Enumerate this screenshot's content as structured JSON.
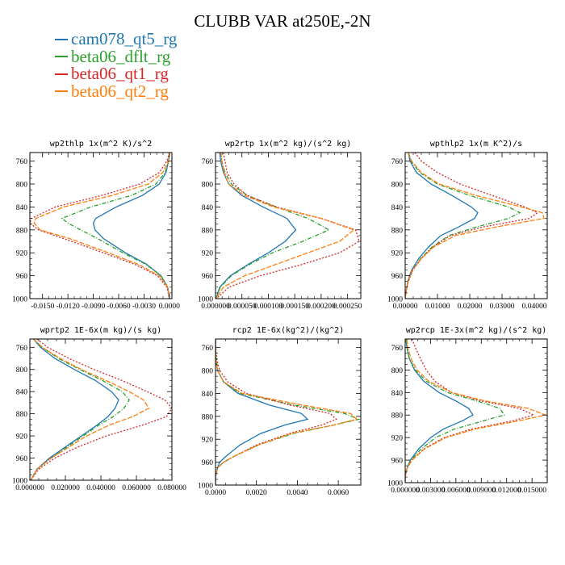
{
  "title": "CLUBB VAR at250E,-2N",
  "legend": [
    {
      "name": "cam078_qt5_rg",
      "color": "#1f77b4"
    },
    {
      "name": "beta06_dflt_rg",
      "color": "#2ca02c"
    },
    {
      "name": "beta06_qt1_rg",
      "color": "#d62728"
    },
    {
      "name": "beta06_qt2_rg",
      "color": "#ff7f0e"
    }
  ],
  "chart_data": [
    {
      "type": "line",
      "title": "wp2thlp   1x(m^2 K)/s^2",
      "xlim": [
        -0.0165,
        0.0003
      ],
      "xticks": [
        -0.015,
        -0.012,
        -0.009,
        -0.006,
        -0.003,
        0.0
      ],
      "xticklabels": [
        "-0.0150",
        "-0.0120",
        "-0.0090",
        "-0.0060",
        "-0.0030",
        "0.0000"
      ],
      "ylim": [
        1000,
        745
      ],
      "yticks": [
        760,
        800,
        840,
        880,
        920,
        960,
        1000
      ],
      "yticklabels": [
        "760",
        "800",
        "840",
        "880",
        "920",
        "960",
        "1000"
      ],
      "y": [
        745,
        760,
        780,
        800,
        820,
        840,
        860,
        868,
        880,
        895,
        920,
        940,
        960,
        980,
        1000
      ],
      "series": [
        {
          "name": "cam078_qt5_rg",
          "values": [
            0,
            -0.0001,
            -0.0004,
            -0.0012,
            -0.0032,
            -0.0063,
            -0.0087,
            -0.009,
            -0.0088,
            -0.0078,
            -0.0052,
            -0.0027,
            -0.001,
            -0.0002,
            0
          ]
        },
        {
          "name": "beta06_dflt_rg",
          "values": [
            0,
            -0.0001,
            -0.0005,
            -0.0016,
            -0.0045,
            -0.0093,
            -0.0127,
            -0.012,
            -0.0105,
            -0.0085,
            -0.0055,
            -0.0028,
            -0.001,
            -0.0002,
            0
          ]
        },
        {
          "name": "beta06_qt1_rg",
          "values": [
            0,
            -0.0003,
            -0.0012,
            -0.0035,
            -0.008,
            -0.0135,
            -0.0163,
            -0.0165,
            -0.0155,
            -0.0125,
            -0.0078,
            -0.0041,
            -0.0014,
            -0.0003,
            0
          ]
        },
        {
          "name": "beta06_qt2_rg",
          "values": [
            0,
            -0.0001,
            -0.0008,
            -0.0025,
            -0.0068,
            -0.0125,
            -0.0158,
            -0.016,
            -0.0153,
            -0.0118,
            -0.0072,
            -0.0037,
            -0.0012,
            -0.0002,
            0
          ]
        }
      ]
    },
    {
      "type": "line",
      "title": "wp2rtp   1x(m^2 kg)/(s^2 kg)",
      "xlim": [
        0.0,
        0.000275
      ],
      "xticks": [
        0.0,
        5e-05,
        0.0001,
        0.00015,
        0.0002,
        0.00025
      ],
      "xticklabels": [
        "0.000000",
        "0.000050",
        "0.000100",
        "0.000150",
        "0.000200",
        "0.000250"
      ],
      "ylim": [
        1000,
        745
      ],
      "yticks": [
        760,
        800,
        840,
        880,
        920,
        960,
        1000
      ],
      "yticklabels": [
        "760",
        "800",
        "840",
        "880",
        "920",
        "960",
        "1000"
      ],
      "y": [
        745,
        760,
        780,
        800,
        820,
        840,
        860,
        880,
        900,
        920,
        940,
        960,
        980,
        1000
      ],
      "series": [
        {
          "name": "cam078_qt5_rg",
          "values": [
            8e-06,
            1e-05,
            1.5e-05,
            2.5e-05,
            5e-05,
            9e-05,
            0.000135,
            0.000152,
            0.000132,
            0.0001,
            6.2e-05,
            2.8e-05,
            8e-06,
            1e-06
          ]
        },
        {
          "name": "beta06_dflt_rg",
          "values": [
            1e-05,
            1.2e-05,
            1.8e-05,
            3e-05,
            6e-05,
            0.000115,
            0.000175,
            0.000215,
            0.000165,
            0.000108,
            6.5e-05,
            3e-05,
            9e-06,
            1e-06
          ]
        },
        {
          "name": "beta06_qt1_rg",
          "values": [
            1.5e-05,
            1.8e-05,
            2.2e-05,
            3.5e-05,
            6e-05,
            0.000115,
            0.0002,
            0.000265,
            0.000272,
            0.000235,
            0.000165,
            8.5e-05,
            2.5e-05,
            2e-06
          ]
        },
        {
          "name": "beta06_qt2_rg",
          "values": [
            1e-05,
            1.2e-05,
            1.6e-05,
            2.5e-05,
            5.5e-05,
            0.00011,
            0.0002,
            0.000262,
            0.000235,
            0.000175,
            0.000115,
            5.5e-05,
            1.5e-05,
            1e-06
          ]
        }
      ]
    },
    {
      "type": "line",
      "title": "wpthlp2   1x(m K^2)/s",
      "xlim": [
        0.0,
        0.044
      ],
      "xticks": [
        0.0,
        0.01,
        0.02,
        0.03,
        0.04
      ],
      "xticklabels": [
        "0.00000",
        "0.01000",
        "0.02000",
        "0.03000",
        "0.04000"
      ],
      "ylim": [
        1000,
        745
      ],
      "yticks": [
        760,
        800,
        840,
        880,
        920,
        960,
        1000
      ],
      "yticklabels": [
        "760",
        "800",
        "840",
        "880",
        "920",
        "960",
        "1000"
      ],
      "y": [
        745,
        760,
        780,
        800,
        820,
        840,
        850,
        860,
        875,
        890,
        910,
        930,
        950,
        970,
        990,
        1000
      ],
      "series": [
        {
          "name": "cam078_qt5_rg",
          "values": [
            0.001,
            0.0015,
            0.0035,
            0.008,
            0.0145,
            0.0205,
            0.0225,
            0.0215,
            0.0165,
            0.011,
            0.0072,
            0.0042,
            0.002,
            0.0008,
            0.0002,
            0
          ]
        },
        {
          "name": "beta06_dflt_rg",
          "values": [
            0.001,
            0.0018,
            0.0045,
            0.01,
            0.02,
            0.032,
            0.0355,
            0.032,
            0.022,
            0.0135,
            0.0083,
            0.0048,
            0.0022,
            0.0009,
            0.0002,
            0
          ]
        },
        {
          "name": "beta06_qt1_rg",
          "values": [
            0.003,
            0.005,
            0.01,
            0.017,
            0.027,
            0.037,
            0.041,
            0.0385,
            0.024,
            0.014,
            0.0085,
            0.005,
            0.0024,
            0.001,
            0.0002,
            0
          ]
        },
        {
          "name": "beta06_qt2_rg",
          "values": [
            0.001,
            0.002,
            0.005,
            0.0105,
            0.022,
            0.036,
            0.0425,
            0.043,
            0.028,
            0.0155,
            0.0088,
            0.005,
            0.0023,
            0.0009,
            0.0002,
            0
          ]
        }
      ]
    },
    {
      "type": "line",
      "title": "wprtp2   1E-6x(m kg)/(s kg)",
      "xlim": [
        0.0,
        0.08
      ],
      "xticks": [
        0.0,
        0.02,
        0.04,
        0.06,
        0.08
      ],
      "xticklabels": [
        "0.000000",
        "0.020000",
        "0.040000",
        "0.060000",
        "0.080000"
      ],
      "ylim": [
        1000,
        745
      ],
      "yticks": [
        760,
        800,
        840,
        880,
        920,
        960,
        1000
      ],
      "yticklabels": [
        "760",
        "800",
        "840",
        "880",
        "920",
        "960",
        "1000"
      ],
      "y": [
        745,
        760,
        780,
        800,
        820,
        840,
        855,
        870,
        885,
        900,
        920,
        940,
        960,
        980,
        1000
      ],
      "series": [
        {
          "name": "cam078_qt5_rg",
          "values": [
            0.002,
            0.006,
            0.014,
            0.025,
            0.037,
            0.046,
            0.05,
            0.048,
            0.044,
            0.038,
            0.029,
            0.02,
            0.011,
            0.004,
            0.0005
          ]
        },
        {
          "name": "beta06_dflt_rg",
          "values": [
            0.002,
            0.007,
            0.016,
            0.028,
            0.041,
            0.052,
            0.056,
            0.053,
            0.047,
            0.039,
            0.03,
            0.021,
            0.012,
            0.004,
            0.0005
          ]
        },
        {
          "name": "beta06_qt1_rg",
          "values": [
            0.004,
            0.01,
            0.022,
            0.036,
            0.052,
            0.066,
            0.076,
            0.08,
            0.077,
            0.064,
            0.043,
            0.027,
            0.014,
            0.005,
            0.0005
          ]
        },
        {
          "name": "beta06_qt2_rg",
          "values": [
            0.002,
            0.007,
            0.017,
            0.029,
            0.043,
            0.056,
            0.064,
            0.067,
            0.058,
            0.045,
            0.032,
            0.022,
            0.012,
            0.004,
            0.0005
          ]
        }
      ]
    },
    {
      "type": "line",
      "title": "rcp2   1E-6x(kg^2)/(kg^2)",
      "xlim": [
        0.0,
        0.0071
      ],
      "xticks": [
        0.0,
        0.002,
        0.004,
        0.006
      ],
      "xticklabels": [
        "0.0000",
        "0.0020",
        "0.0040",
        "0.0060"
      ],
      "ylim": [
        1000,
        745
      ],
      "yticks": [
        760,
        800,
        840,
        880,
        920,
        960,
        1000
      ],
      "yticklabels": [
        "760",
        "800",
        "840",
        "880",
        "920",
        "960",
        "1000"
      ],
      "y": [
        745,
        760,
        780,
        800,
        820,
        840,
        860,
        875,
        885,
        895,
        910,
        930,
        950,
        960,
        970,
        985,
        1000
      ],
      "series": [
        {
          "name": "cam078_qt5_rg",
          "values": [
            0,
            0,
            2e-05,
            0.0001,
            0.0004,
            0.0011,
            0.0026,
            0.0042,
            0.0045,
            0.0034,
            0.0022,
            0.0012,
            0.0005,
            0.0002,
            0.0001,
            0,
            0
          ]
        },
        {
          "name": "beta06_dflt_rg",
          "values": [
            0,
            0,
            2e-05,
            0.0001,
            0.0004,
            0.0012,
            0.0038,
            0.0063,
            0.007,
            0.0058,
            0.0038,
            0.0021,
            0.0009,
            0.0004,
            0.0001,
            0,
            0
          ]
        },
        {
          "name": "beta06_qt1_rg",
          "values": [
            0,
            1e-05,
            6e-05,
            0.0002,
            0.0006,
            0.0015,
            0.0036,
            0.0056,
            0.0059,
            0.0052,
            0.0036,
            0.002,
            0.0009,
            0.0004,
            0.0001,
            0,
            0
          ]
        },
        {
          "name": "beta06_qt2_rg",
          "values": [
            0,
            0,
            2e-05,
            0.0001,
            0.0004,
            0.0013,
            0.0042,
            0.0066,
            0.0069,
            0.0058,
            0.0037,
            0.0021,
            0.0009,
            0.0004,
            0.0001,
            0,
            0
          ]
        }
      ]
    },
    {
      "type": "line",
      "title": "wp2rcp   1E-3x(m^2 kg)/(s^2 kg)",
      "xlim": [
        0.0,
        0.0168
      ],
      "xticks": [
        0.0,
        0.003,
        0.006,
        0.009,
        0.012,
        0.015
      ],
      "xticklabels": [
        "0.000000",
        "0.003000",
        "0.006000",
        "0.009000",
        "0.012000",
        "0.015000"
      ],
      "ylim": [
        1000,
        745
      ],
      "yticks": [
        760,
        800,
        840,
        880,
        920,
        960,
        1000
      ],
      "yticklabels": [
        "760",
        "800",
        "840",
        "880",
        "920",
        "960",
        "1000"
      ],
      "y": [
        745,
        760,
        780,
        800,
        820,
        840,
        855,
        868,
        880,
        890,
        905,
        920,
        940,
        960,
        975,
        990,
        1000
      ],
      "series": [
        {
          "name": "cam078_qt5_rg",
          "values": [
            0.0001,
            0.0002,
            0.0005,
            0.0011,
            0.0022,
            0.004,
            0.006,
            0.0075,
            0.008,
            0.0068,
            0.0045,
            0.003,
            0.0016,
            0.0006,
            0.0002,
            0,
            0
          ]
        },
        {
          "name": "beta06_dflt_rg",
          "values": [
            0.0001,
            0.0002,
            0.0005,
            0.0012,
            0.0025,
            0.005,
            0.0085,
            0.0112,
            0.0117,
            0.0093,
            0.0058,
            0.0036,
            0.0019,
            0.0007,
            0.0002,
            0,
            0
          ]
        },
        {
          "name": "beta06_qt1_rg",
          "values": [
            0.0008,
            0.0012,
            0.0018,
            0.0025,
            0.0035,
            0.0055,
            0.009,
            0.0135,
            0.0152,
            0.0128,
            0.0078,
            0.0046,
            0.0022,
            0.0008,
            0.0002,
            0,
            0
          ]
        },
        {
          "name": "beta06_qt2_rg",
          "values": [
            0.0002,
            0.0003,
            0.0007,
            0.0014,
            0.0028,
            0.0055,
            0.0095,
            0.0145,
            0.0166,
            0.0135,
            0.0082,
            0.0048,
            0.0023,
            0.0008,
            0.0002,
            0,
            0
          ]
        }
      ]
    }
  ]
}
